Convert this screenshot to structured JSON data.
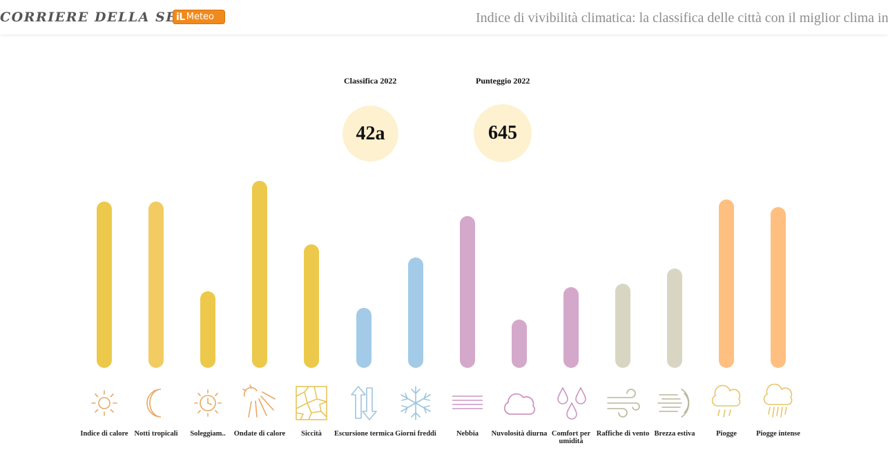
{
  "header": {
    "brand": "CORRIERE DELLA SERA",
    "badge_il": "iL",
    "badge_word": "Meteo",
    "title": "Indice di vivibilità climatica: la classifica delle città con il miglior clima in Italia"
  },
  "stats": {
    "rank_label": "Classifica 2022",
    "rank_value": "42a",
    "score_label": "Punteggio 2022",
    "score_value": "645"
  },
  "colors": {
    "yellow": "#ecc94b",
    "light_yellow": "#f2cc62",
    "blue": "#a3cbe8",
    "purple": "#d4a8cb",
    "gray": "#d8d6c2",
    "orange": "#ffbf80",
    "circle": "#fdf1cf"
  },
  "indicators": [
    {
      "label": "Indice di calore",
      "level": 0.89,
      "color": "#ecc94b",
      "icon": "sun-icon"
    },
    {
      "label": "Notti tropicali",
      "level": 0.89,
      "color": "#f2cc62",
      "icon": "moon-icon"
    },
    {
      "label": "Soleggiam..",
      "level": 0.41,
      "color": "#ecc94b",
      "icon": "sun-clock-icon"
    },
    {
      "label": "Ondate di calore",
      "level": 1.0,
      "color": "#ecc94b",
      "icon": "heatwave-sun-icon"
    },
    {
      "label": "Siccità",
      "level": 0.66,
      "color": "#ecc94b",
      "icon": "cracked-ground-icon"
    },
    {
      "label": "Escursione termica",
      "level": 0.32,
      "color": "#a3cbe8",
      "icon": "arrows-updown-icon"
    },
    {
      "label": "Giorni freddi",
      "level": 0.59,
      "color": "#a3cbe8",
      "icon": "snowflake-icon"
    },
    {
      "label": "Nebbia",
      "level": 0.81,
      "color": "#d4a8cb",
      "icon": "fog-icon"
    },
    {
      "label": "Nuvolosità diurna",
      "level": 0.26,
      "color": "#d4a8cb",
      "icon": "cloud-icon"
    },
    {
      "label": "Comfort per umidità",
      "level": 0.43,
      "color": "#d4a8cb",
      "icon": "drops-icon"
    },
    {
      "label": "Raffiche di vento",
      "level": 0.45,
      "color": "#d8d6c2",
      "icon": "wind-gusts-icon"
    },
    {
      "label": "Brezza estiva",
      "level": 0.53,
      "color": "#d8d6c2",
      "icon": "breeze-icon"
    },
    {
      "label": "Piogge",
      "level": 0.9,
      "color": "#ffbf80",
      "icon": "rain-cloud-icon"
    },
    {
      "label": "Piogge intense",
      "level": 0.86,
      "color": "#ffbf80",
      "icon": "heavy-rain-icon"
    }
  ]
}
